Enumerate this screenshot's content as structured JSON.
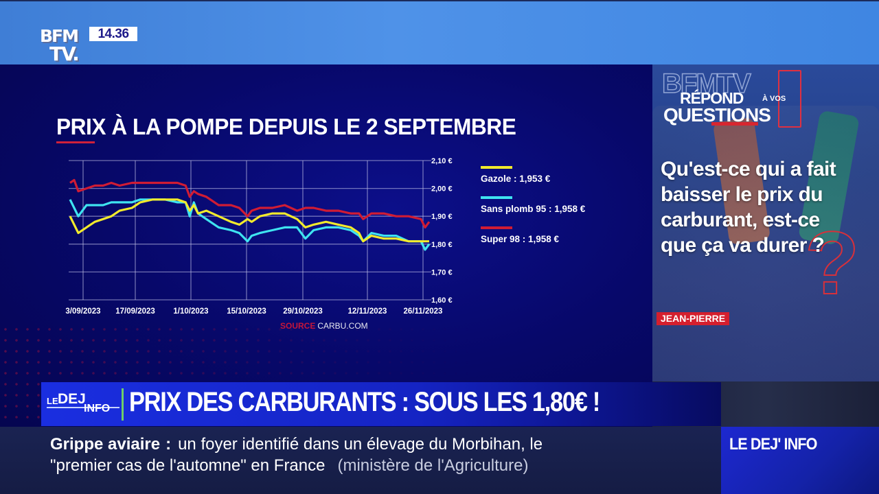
{
  "channel": {
    "logo_line1": "BFM",
    "logo_line2": "TV.",
    "clock": "14.36"
  },
  "chart_title": "PRIX À LA POMPE DEPUIS LE 2 SEPTEMBRE",
  "legend": [
    {
      "label": "Gazole : 1,953 €",
      "color": "#f2ea2c"
    },
    {
      "label": "Sans plomb 95 : 1,958 €",
      "color": "#3fe3f0"
    },
    {
      "label": "Super 98 : 1,958 €",
      "color": "#d01c34"
    }
  ],
  "source": {
    "key": "SOURCE",
    "value": "CARBU.COM"
  },
  "chart_data": {
    "type": "line",
    "title": "PRIX À LA POMPE DEPUIS LE 2 SEPTEMBRE",
    "xlabel": "",
    "ylabel": "",
    "ylim": [
      1.6,
      2.1
    ],
    "y_ticks": [
      "2,10 €",
      "2,00 €",
      "1,90 €",
      "1,80 €",
      "1,70 €",
      "1,60 €"
    ],
    "x_ticks": [
      "3/09/2023",
      "17/09/2023",
      "1/10/2023",
      "15/10/2023",
      "29/10/2023",
      "12/11/2023",
      "26/11/2023"
    ],
    "grid": true,
    "legend_position": "right",
    "source": "SOURCE CARBU.COM",
    "x": [
      "2/09",
      "3/09",
      "4/09",
      "6/09",
      "8/09",
      "10/09",
      "12/09",
      "14/09",
      "17/09",
      "19/09",
      "22/09",
      "25/09",
      "28/09",
      "30/09",
      "1/10",
      "2/10",
      "3/10",
      "5/10",
      "8/10",
      "11/10",
      "13/10",
      "15/10",
      "16/10",
      "18/10",
      "21/10",
      "24/10",
      "27/10",
      "29/10",
      "31/10",
      "3/11",
      "6/11",
      "9/11",
      "11/11",
      "12/11",
      "14/11",
      "17/11",
      "20/11",
      "23/11",
      "26/11",
      "27/11",
      "28/11"
    ],
    "series": [
      {
        "name": "Gazole",
        "color": "#f2ea2c",
        "values": [
          1.9,
          1.87,
          1.84,
          1.86,
          1.88,
          1.89,
          1.9,
          1.92,
          1.93,
          1.95,
          1.96,
          1.96,
          1.96,
          1.95,
          1.92,
          1.94,
          1.91,
          1.92,
          1.9,
          1.88,
          1.87,
          1.89,
          1.88,
          1.9,
          1.91,
          1.91,
          1.89,
          1.86,
          1.87,
          1.88,
          1.87,
          1.86,
          1.84,
          1.81,
          1.83,
          1.82,
          1.82,
          1.81,
          1.81,
          1.81,
          1.81
        ]
      },
      {
        "name": "Sans plomb 95",
        "color": "#3fe3f0",
        "values": [
          1.96,
          1.93,
          1.9,
          1.94,
          1.94,
          1.94,
          1.95,
          1.95,
          1.95,
          1.96,
          1.96,
          1.96,
          1.95,
          1.95,
          1.9,
          1.95,
          1.91,
          1.89,
          1.86,
          1.85,
          1.84,
          1.81,
          1.83,
          1.84,
          1.85,
          1.86,
          1.86,
          1.82,
          1.85,
          1.86,
          1.86,
          1.85,
          1.83,
          1.81,
          1.84,
          1.83,
          1.83,
          1.81,
          1.81,
          1.78,
          1.8
        ]
      },
      {
        "name": "Super 98",
        "color": "#d01c34",
        "values": [
          2.02,
          2.03,
          1.99,
          2.0,
          2.01,
          2.01,
          2.02,
          2.01,
          2.02,
          2.02,
          2.02,
          2.02,
          2.02,
          2.01,
          1.97,
          1.99,
          1.98,
          1.97,
          1.94,
          1.94,
          1.93,
          1.9,
          1.92,
          1.93,
          1.93,
          1.94,
          1.92,
          1.93,
          1.93,
          1.92,
          1.92,
          1.91,
          1.91,
          1.89,
          1.91,
          1.91,
          1.9,
          1.9,
          1.89,
          1.86,
          1.88
        ]
      }
    ]
  },
  "side_panel": {
    "ghost_logo": "BFMTV",
    "label_repond": "RÉPOND",
    "label_avos": "À VOS",
    "label_questions": "QUESTIONS",
    "question": "Qu'est-ce qui a fait baisser le prix du carburant, est-ce que ça va durer ?",
    "asker": "JEAN-PIERRE"
  },
  "headline": {
    "show_logo_le": "LE",
    "show_logo_dej": "DEJ",
    "show_logo_info": "INFO",
    "text": "PRIX DES CARBURANTS : SOUS LES 1,80€ !"
  },
  "ticker": {
    "topic": "Grippe aviaire",
    "colon": ":",
    "line1": "un foyer identifié dans un élevage du Morbihan, le",
    "line2": "\"premier cas de l'automne\" en France",
    "source": "(ministère de l'Agriculture)"
  },
  "show_badge": "LE DEJ' INFO"
}
